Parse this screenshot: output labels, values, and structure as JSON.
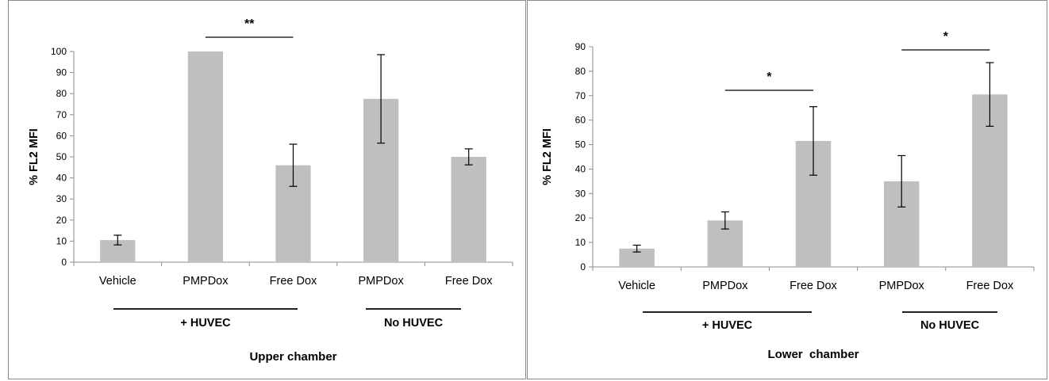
{
  "chart_data": [
    {
      "type": "bar",
      "xlabel": "Upper chamber",
      "ylabel": "% FL2 MFI",
      "ylim": [
        0,
        100
      ],
      "ytick_step": 10,
      "categories": [
        "Vehicle",
        "PMPDox",
        "Free Dox",
        "PMPDox",
        "Free Dox"
      ],
      "series": [
        {
          "values": [
            10.5,
            100,
            46,
            77.5,
            50
          ],
          "errors": [
            2.3,
            0,
            10,
            21,
            3.8
          ]
        }
      ],
      "groups": [
        {
          "label": "+ HUVEC",
          "categories": [
            0,
            1,
            2
          ]
        },
        {
          "label": "No HUVEC",
          "categories": [
            3,
            4
          ]
        }
      ],
      "significance": [
        {
          "between": [
            1,
            2
          ],
          "label": "**"
        }
      ],
      "bar_color": "#bfbfbf",
      "grid": false,
      "legend": "none"
    },
    {
      "type": "bar",
      "xlabel": "Lower  chamber",
      "ylabel": "% FL2 MFI",
      "ylim": [
        0,
        90
      ],
      "ytick_step": 10,
      "categories": [
        "Vehicle",
        "PMPDox",
        "Free Dox",
        "PMPDox",
        "Free Dox"
      ],
      "series": [
        {
          "values": [
            7.5,
            19,
            51.5,
            35,
            70.5
          ],
          "errors": [
            1.4,
            3.5,
            14,
            10.5,
            13
          ]
        }
      ],
      "groups": [
        {
          "label": "+ HUVEC",
          "categories": [
            0,
            1,
            2
          ]
        },
        {
          "label": "No HUVEC",
          "categories": [
            3,
            4
          ]
        }
      ],
      "significance": [
        {
          "between": [
            1,
            2
          ],
          "label": "*"
        },
        {
          "between": [
            3,
            4
          ],
          "label": "*"
        }
      ],
      "bar_color": "#bfbfbf",
      "grid": false,
      "legend": "none"
    }
  ]
}
